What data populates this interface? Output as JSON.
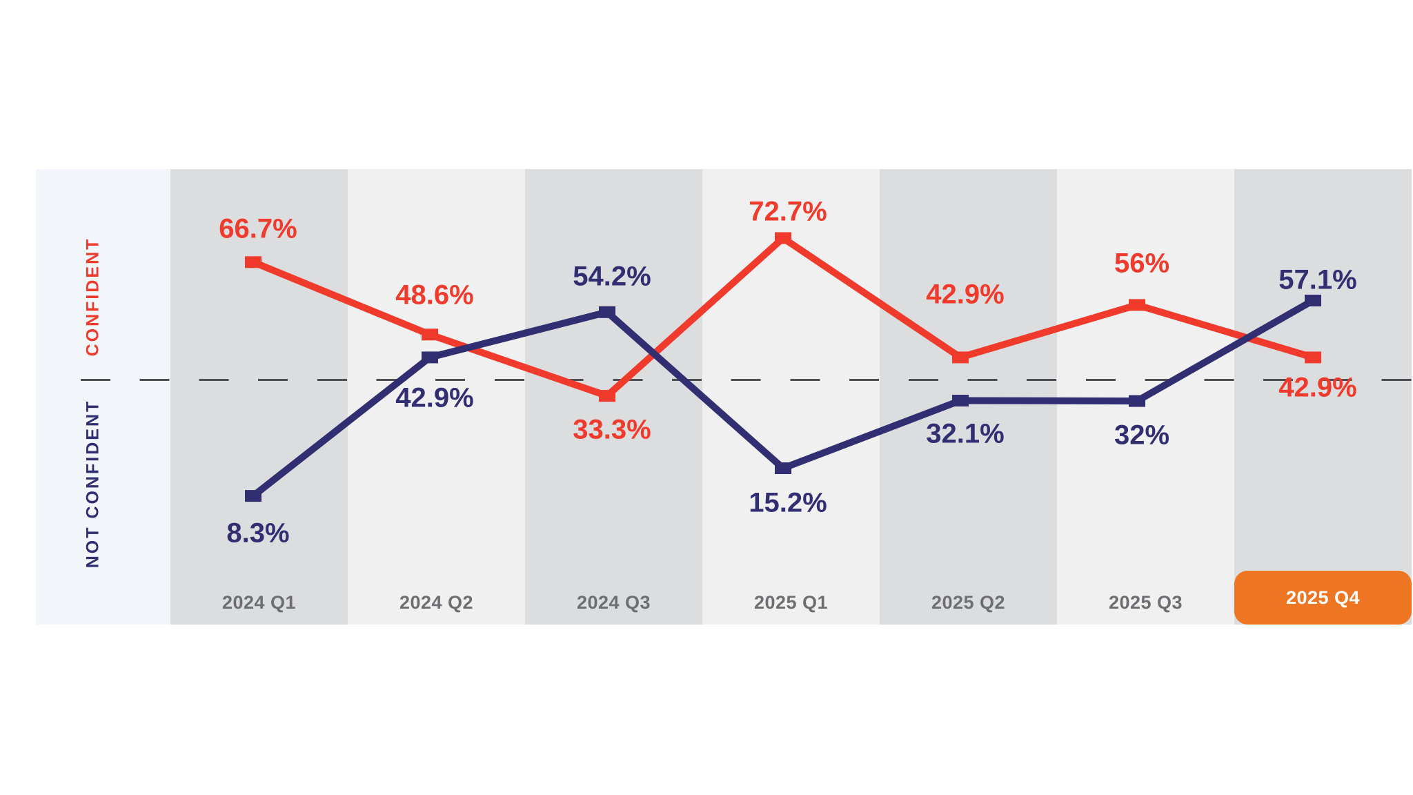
{
  "chart_data": {
    "type": "line",
    "categories": [
      "2024 Q1",
      "2024 Q2",
      "2024 Q3",
      "2025 Q1",
      "2025 Q2",
      "2025 Q3",
      "2025 Q4"
    ],
    "highlighted_category": "2025 Q4",
    "axis_labels": {
      "upper": "CONFIDENT",
      "lower": "NOT CONFIDENT"
    },
    "series": [
      {
        "name": "Confident",
        "color": "#F03A2B",
        "values": [
          66.7,
          48.6,
          33.3,
          72.7,
          42.9,
          56,
          42.9
        ],
        "labels": [
          "66.7%",
          "48.6%",
          "33.3%",
          "72.7%",
          "42.9%",
          "56%",
          "42.9%"
        ]
      },
      {
        "name": "Not Confident",
        "color": "#312E72",
        "values": [
          8.3,
          42.9,
          54.2,
          15.2,
          32.1,
          32,
          57.1
        ],
        "labels": [
          "8.3%",
          "42.9%",
          "54.2%",
          "15.2%",
          "32.1%",
          "32%",
          "57.1%"
        ]
      }
    ],
    "divider": {
      "style": "dashed",
      "color": "#4D4F53"
    },
    "colors": {
      "background": "#FFFFFF",
      "band_axis": "#F2F5F9",
      "band_dark": "#DCDDDE",
      "band_light": "#F0F0F0",
      "category_label": "#6D6E71",
      "highlight_badge": "#EE7623",
      "highlight_badge_text": "#FFFFFF"
    },
    "layout_hints": {
      "grid": false,
      "legend": false,
      "marker": "square",
      "band_shades": [
        "dark",
        "light",
        "dark",
        "light",
        "dark",
        "light",
        "dark"
      ],
      "value_label_offsets": {
        "above_below": [
          [
            -48,
            -57,
            49,
            -38,
            -91,
            -60,
            44
          ],
          [
            54,
            59,
            -51,
            50,
            48,
            50,
            -30
          ]
        ]
      }
    }
  }
}
